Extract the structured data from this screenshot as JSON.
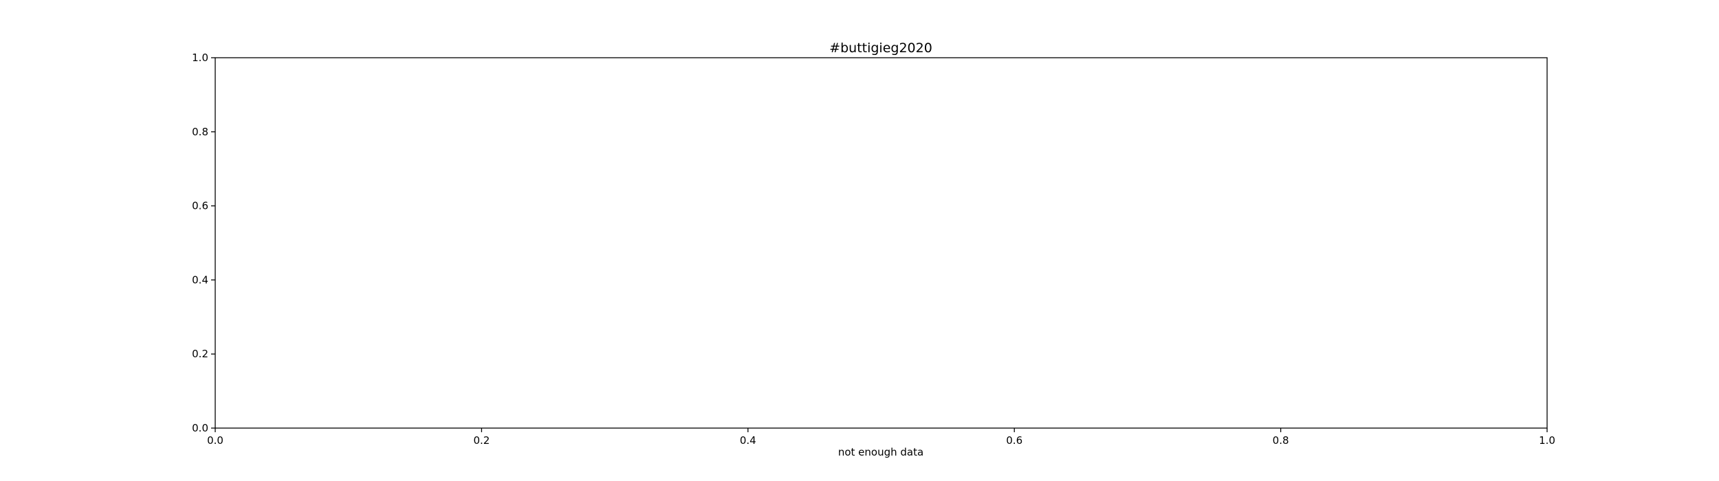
{
  "chart_data": {
    "type": "line",
    "title": "#buttigieg2020",
    "xlabel": "not enough data",
    "ylabel": "",
    "xlim": [
      0.0,
      1.0
    ],
    "ylim": [
      0.0,
      1.0
    ],
    "x_ticks": [
      0.0,
      0.2,
      0.4,
      0.6,
      0.8,
      1.0
    ],
    "y_ticks": [
      0.0,
      0.2,
      0.4,
      0.6,
      0.8,
      1.0
    ],
    "x_tick_labels": [
      "0.0",
      "0.2",
      "0.4",
      "0.6",
      "0.8",
      "1.0"
    ],
    "y_tick_labels": [
      "0.0",
      "0.2",
      "0.4",
      "0.6",
      "0.8",
      "1.0"
    ],
    "grid": false,
    "series": []
  },
  "colors": {
    "axes": "#000000",
    "background": "#ffffff"
  }
}
